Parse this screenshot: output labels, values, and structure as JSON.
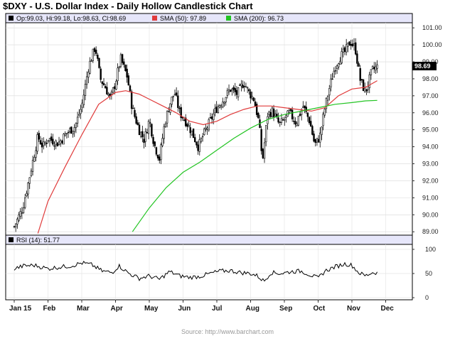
{
  "header": {
    "title": "$DXY - U.S. Dollar Index - Daily Hollow Candlestick Chart",
    "ohlc": "Op:99.03, Hi:99.18, Lo:98.63, Cl:98.69",
    "sma50_label": "SMA (50): 97.89",
    "sma200_label": "SMA (200): 96.73"
  },
  "rsi_label": "RSI (14): 51.77",
  "last_price_label": "98.69",
  "source": "Source: http://www.barchart.com",
  "colors": {
    "sma50": "#e03b3b",
    "sma200": "#22c422",
    "candle": "#000000",
    "panel_header": "#e6e6fa",
    "rsi_line": "#000000"
  },
  "chart_data": [
    {
      "type": "candlestick",
      "y_ticks": [
        "89.00",
        "90.00",
        "91.00",
        "92.00",
        "93.00",
        "94.00",
        "95.00",
        "96.00",
        "97.00",
        "98.00",
        "99.00",
        "100.00",
        "101.00"
      ],
      "ylim": [
        88.8,
        101.3
      ],
      "x_months": [
        "Jan 15",
        "Feb",
        "Mar",
        "Apr",
        "May",
        "Jun",
        "Jul",
        "Aug",
        "Sep",
        "Oct",
        "Nov",
        "Dec"
      ],
      "months_x_index": [
        0,
        1,
        2,
        3,
        4,
        5,
        6,
        7,
        8,
        9,
        10,
        11
      ],
      "close_anchors": [
        [
          0,
          89.3
        ],
        [
          0.25,
          90.4
        ],
        [
          0.45,
          92.2
        ],
        [
          0.7,
          94.6
        ],
        [
          0.85,
          94.0
        ],
        [
          1.0,
          94.5
        ],
        [
          1.3,
          94.2
        ],
        [
          1.55,
          94.8
        ],
        [
          1.8,
          95.2
        ],
        [
          2.0,
          96.4
        ],
        [
          2.2,
          98.7
        ],
        [
          2.4,
          99.9
        ],
        [
          2.55,
          98.0
        ],
        [
          2.7,
          97.5
        ],
        [
          2.85,
          96.8
        ],
        [
          3.0,
          97.8
        ],
        [
          3.15,
          99.2
        ],
        [
          3.35,
          98.1
        ],
        [
          3.5,
          96.2
        ],
        [
          3.7,
          95.0
        ],
        [
          3.85,
          94.4
        ],
        [
          4.0,
          95.6
        ],
        [
          4.15,
          94.1
        ],
        [
          4.3,
          93.3
        ],
        [
          4.45,
          95.3
        ],
        [
          4.6,
          96.5
        ],
        [
          4.75,
          97.2
        ],
        [
          4.9,
          96.0
        ],
        [
          5.05,
          95.6
        ],
        [
          5.25,
          94.9
        ],
        [
          5.45,
          94.0
        ],
        [
          5.6,
          94.7
        ],
        [
          5.8,
          95.5
        ],
        [
          6.0,
          96.3
        ],
        [
          6.2,
          96.8
        ],
        [
          6.4,
          97.4
        ],
        [
          6.6,
          97.1
        ],
        [
          6.8,
          97.8
        ],
        [
          6.95,
          97.2
        ],
        [
          7.1,
          96.8
        ],
        [
          7.25,
          95.4
        ],
        [
          7.35,
          93.1
        ],
        [
          7.5,
          95.9
        ],
        [
          7.65,
          96.1
        ],
        [
          7.85,
          95.3
        ],
        [
          8.0,
          95.6
        ],
        [
          8.15,
          96.0
        ],
        [
          8.35,
          95.4
        ],
        [
          8.55,
          96.4
        ],
        [
          8.75,
          95.5
        ],
        [
          8.9,
          94.1
        ],
        [
          9.05,
          94.6
        ],
        [
          9.2,
          96.3
        ],
        [
          9.35,
          97.6
        ],
        [
          9.5,
          98.7
        ],
        [
          9.65,
          99.3
        ],
        [
          9.8,
          99.6
        ],
        [
          9.95,
          100.2
        ],
        [
          10.1,
          99.8
        ],
        [
          10.25,
          97.9
        ],
        [
          10.4,
          97.2
        ],
        [
          10.6,
          98.5
        ],
        [
          10.75,
          98.7
        ]
      ],
      "sma50_anchors": [
        [
          0.7,
          88.9
        ],
        [
          1.0,
          90.8
        ],
        [
          1.5,
          92.8
        ],
        [
          2.0,
          94.7
        ],
        [
          2.5,
          96.5
        ],
        [
          3.0,
          97.2
        ],
        [
          3.3,
          97.3
        ],
        [
          3.7,
          97.1
        ],
        [
          4.0,
          96.8
        ],
        [
          4.4,
          96.4
        ],
        [
          4.8,
          96.0
        ],
        [
          5.2,
          95.5
        ],
        [
          5.6,
          95.3
        ],
        [
          6.0,
          95.5
        ],
        [
          6.4,
          95.9
        ],
        [
          6.8,
          96.2
        ],
        [
          7.2,
          96.4
        ],
        [
          7.6,
          96.4
        ],
        [
          8.0,
          96.3
        ],
        [
          8.4,
          96.2
        ],
        [
          8.8,
          96.1
        ],
        [
          9.2,
          96.3
        ],
        [
          9.6,
          97.0
        ],
        [
          10.0,
          97.4
        ],
        [
          10.4,
          97.5
        ],
        [
          10.75,
          97.89
        ]
      ],
      "sma200_anchors": [
        [
          3.5,
          89.0
        ],
        [
          4.0,
          90.4
        ],
        [
          4.5,
          91.6
        ],
        [
          5.0,
          92.5
        ],
        [
          5.5,
          93.1
        ],
        [
          6.0,
          93.8
        ],
        [
          6.5,
          94.5
        ],
        [
          7.0,
          95.1
        ],
        [
          7.5,
          95.6
        ],
        [
          8.0,
          95.9
        ],
        [
          8.5,
          96.1
        ],
        [
          9.0,
          96.3
        ],
        [
          9.5,
          96.5
        ],
        [
          10.0,
          96.6
        ],
        [
          10.4,
          96.7
        ],
        [
          10.75,
          96.73
        ]
      ]
    },
    {
      "type": "line",
      "y_ticks": [
        "0",
        "50",
        "100"
      ],
      "ylim": [
        0,
        100
      ],
      "x_months": [
        "Jan 15",
        "Feb",
        "Mar",
        "Apr",
        "May",
        "Jun",
        "Jul",
        "Aug",
        "Sep",
        "Oct",
        "Nov",
        "Dec"
      ],
      "rsi_anchors": [
        [
          0,
          60
        ],
        [
          0.3,
          66
        ],
        [
          0.6,
          67
        ],
        [
          1.0,
          60
        ],
        [
          1.3,
          63
        ],
        [
          1.7,
          66
        ],
        [
          2.0,
          72
        ],
        [
          2.3,
          68
        ],
        [
          2.6,
          55
        ],
        [
          2.9,
          52
        ],
        [
          3.1,
          66
        ],
        [
          3.4,
          50
        ],
        [
          3.7,
          40
        ],
        [
          4.0,
          45
        ],
        [
          4.3,
          38
        ],
        [
          4.6,
          54
        ],
        [
          4.9,
          45
        ],
        [
          5.2,
          42
        ],
        [
          5.5,
          44
        ],
        [
          5.8,
          50
        ],
        [
          6.1,
          55
        ],
        [
          6.4,
          56
        ],
        [
          6.7,
          52
        ],
        [
          7.0,
          50
        ],
        [
          7.2,
          45
        ],
        [
          7.4,
          34
        ],
        [
          7.6,
          52
        ],
        [
          7.9,
          50
        ],
        [
          8.2,
          54
        ],
        [
          8.5,
          55
        ],
        [
          8.8,
          46
        ],
        [
          9.0,
          40
        ],
        [
          9.2,
          55
        ],
        [
          9.5,
          64
        ],
        [
          9.8,
          70
        ],
        [
          10.0,
          67
        ],
        [
          10.2,
          52
        ],
        [
          10.4,
          45
        ],
        [
          10.6,
          52
        ],
        [
          10.75,
          51.77
        ]
      ]
    }
  ]
}
